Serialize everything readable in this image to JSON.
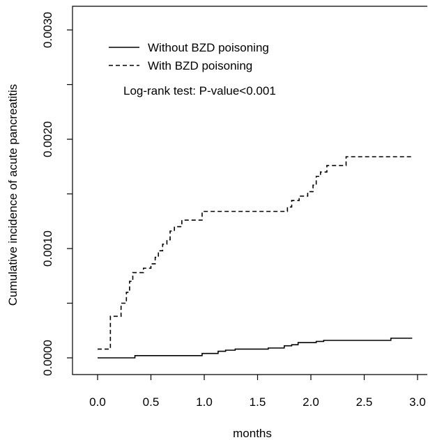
{
  "chart_data": {
    "type": "line",
    "title": "",
    "xlabel": "months",
    "ylabel": "Cumulative incidence of acute pancreatitis",
    "xlim": [
      -0.15,
      3.0
    ],
    "ylim": [
      -0.00018,
      0.003
    ],
    "xticks": [
      0.0,
      0.5,
      1.0,
      1.5,
      2.0,
      2.5,
      3.0
    ],
    "xtick_labels": [
      "0.0",
      "0.5",
      "1.0",
      "1.5",
      "2.0",
      "2.5",
      "3.0"
    ],
    "yticks": [
      0.0,
      0.0005,
      0.001,
      0.0015,
      0.002,
      0.0025,
      0.003
    ],
    "ytick_labels": [
      "0.0000",
      "",
      "0.0010",
      "",
      "0.0020",
      "",
      "0.0030"
    ],
    "grid": false,
    "legend_position": "top-left",
    "annotation": "Log-rank test: P-value<0.001",
    "series": [
      {
        "name": "Without BZD poisoning",
        "line_style": "solid",
        "color": "#000000",
        "step": [
          [
            0.0,
            0.0
          ],
          [
            0.35,
            2e-05
          ],
          [
            0.98,
            4e-05
          ],
          [
            1.13,
            6e-05
          ],
          [
            1.2,
            7e-05
          ],
          [
            1.29,
            8e-05
          ],
          [
            1.6,
            9e-05
          ],
          [
            1.75,
            0.00011
          ],
          [
            1.82,
            0.00012
          ],
          [
            1.88,
            0.00014
          ],
          [
            2.05,
            0.00015
          ],
          [
            2.12,
            0.00016
          ],
          [
            2.75,
            0.00018
          ],
          [
            2.95,
            0.00018
          ]
        ]
      },
      {
        "name": "With BZD poisoning",
        "line_style": "dashed",
        "color": "#000000",
        "step": [
          [
            0.0,
            8e-05
          ],
          [
            0.12,
            0.00038
          ],
          [
            0.22,
            0.0005
          ],
          [
            0.27,
            0.0006
          ],
          [
            0.3,
            0.0007
          ],
          [
            0.33,
            0.00078
          ],
          [
            0.43,
            0.00082
          ],
          [
            0.5,
            0.00086
          ],
          [
            0.54,
            0.00092
          ],
          [
            0.57,
            0.00098
          ],
          [
            0.61,
            0.00104
          ],
          [
            0.65,
            0.00108
          ],
          [
            0.68,
            0.00116
          ],
          [
            0.72,
            0.0012
          ],
          [
            0.79,
            0.00126
          ],
          [
            0.98,
            0.00134
          ],
          [
            1.78,
            0.00138
          ],
          [
            1.82,
            0.00144
          ],
          [
            1.89,
            0.00148
          ],
          [
            1.97,
            0.00152
          ],
          [
            2.02,
            0.00158
          ],
          [
            2.05,
            0.00166
          ],
          [
            2.09,
            0.0017
          ],
          [
            2.15,
            0.00176
          ],
          [
            2.33,
            0.00184
          ],
          [
            2.95,
            0.00184
          ]
        ]
      }
    ]
  }
}
